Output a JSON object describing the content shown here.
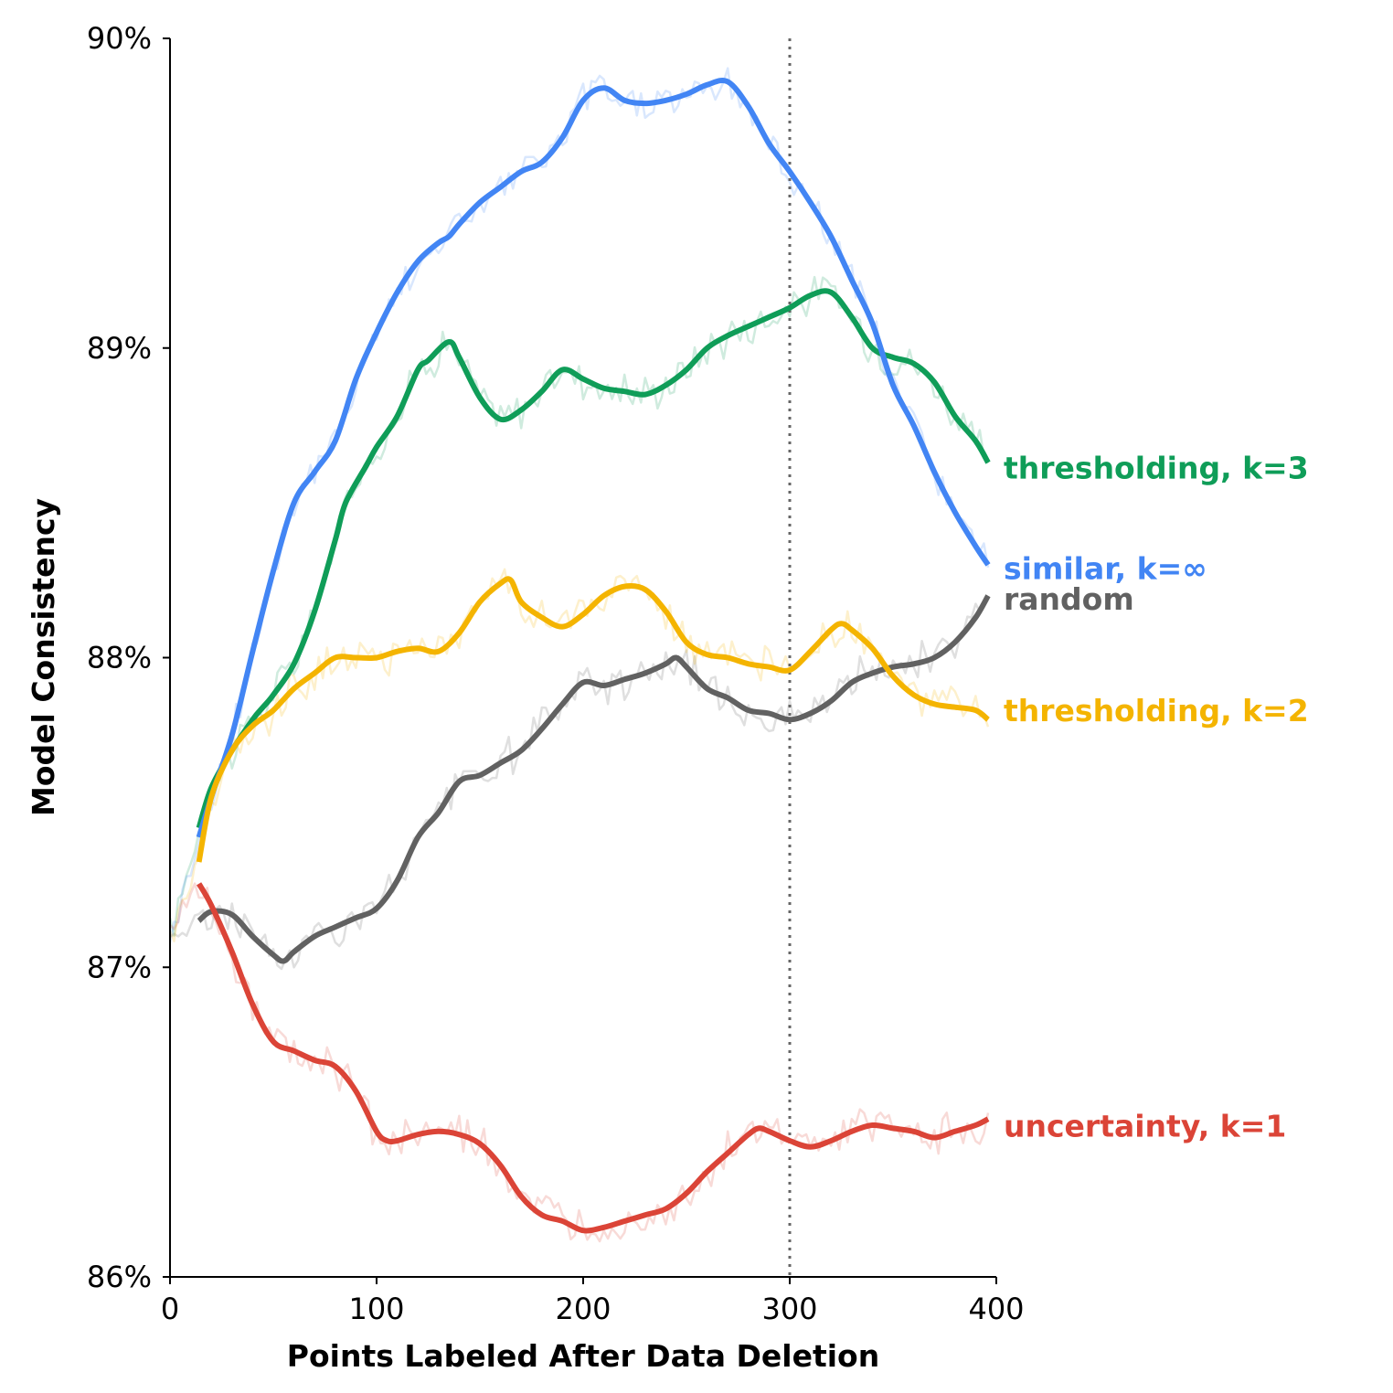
{
  "chart_data": {
    "type": "line",
    "title": "",
    "xlabel": "Points Labeled After Data Deletion",
    "ylabel": "Model Consistency",
    "xlim": [
      0,
      400
    ],
    "ylim": [
      86,
      90
    ],
    "x_ticks": [
      {
        "value": 0,
        "label": "0"
      },
      {
        "value": 100,
        "label": "100"
      },
      {
        "value": 200,
        "label": "200"
      },
      {
        "value": 300,
        "label": "300"
      },
      {
        "value": 400,
        "label": "400"
      }
    ],
    "y_ticks": [
      {
        "value": 86,
        "label": "86%"
      },
      {
        "value": 87,
        "label": "87%"
      },
      {
        "value": 88,
        "label": "88%"
      },
      {
        "value": 89,
        "label": "89%"
      },
      {
        "value": 90,
        "label": "90%"
      }
    ],
    "grid": false,
    "reference_line": {
      "x": 300,
      "style": "dotted",
      "color": "#666666"
    },
    "raw_noise_amplitude": 0.05,
    "series": [
      {
        "name": "thresholding, k=3",
        "color": "#0f9d58",
        "x": [
          14,
          20,
          30,
          40,
          45,
          50,
          60,
          70,
          80,
          85,
          95,
          100,
          110,
          120,
          125,
          135,
          140,
          150,
          160,
          170,
          180,
          190,
          200,
          210,
          220,
          230,
          240,
          250,
          260,
          270,
          280,
          290,
          300,
          310,
          320,
          330,
          340,
          350,
          360,
          370,
          380,
          390,
          396
        ],
        "y": [
          87.45,
          87.58,
          87.7,
          87.8,
          87.84,
          87.88,
          87.98,
          88.15,
          88.38,
          88.5,
          88.62,
          88.68,
          88.78,
          88.93,
          88.96,
          89.02,
          88.97,
          88.84,
          88.77,
          88.8,
          88.86,
          88.93,
          88.9,
          88.87,
          88.86,
          88.85,
          88.88,
          88.93,
          89.0,
          89.04,
          89.07,
          89.1,
          89.13,
          89.17,
          89.18,
          89.1,
          89.0,
          88.97,
          88.95,
          88.89,
          88.78,
          88.7,
          88.63
        ]
      },
      {
        "name": "similar, k=∞",
        "color": "#4285f4",
        "x": [
          14,
          20,
          30,
          40,
          50,
          60,
          70,
          80,
          90,
          100,
          110,
          120,
          130,
          135,
          140,
          150,
          160,
          170,
          180,
          190,
          200,
          210,
          220,
          230,
          240,
          250,
          260,
          270,
          280,
          290,
          300,
          310,
          320,
          330,
          340,
          350,
          360,
          370,
          380,
          390,
          396
        ],
        "y": [
          87.42,
          87.55,
          87.75,
          88.02,
          88.28,
          88.5,
          88.6,
          88.7,
          88.9,
          89.05,
          89.18,
          89.28,
          89.34,
          89.36,
          89.4,
          89.47,
          89.52,
          89.57,
          89.6,
          89.68,
          89.8,
          89.84,
          89.8,
          89.79,
          89.8,
          89.82,
          89.85,
          89.86,
          89.78,
          89.66,
          89.57,
          89.47,
          89.36,
          89.22,
          89.08,
          88.88,
          88.75,
          88.6,
          88.47,
          88.36,
          88.3
        ]
      },
      {
        "name": "random",
        "color": "#616161",
        "x": [
          14,
          20,
          30,
          40,
          50,
          55,
          60,
          70,
          80,
          90,
          100,
          110,
          120,
          130,
          140,
          150,
          160,
          170,
          180,
          190,
          200,
          210,
          220,
          230,
          240,
          245,
          250,
          260,
          270,
          280,
          290,
          300,
          310,
          320,
          330,
          340,
          350,
          360,
          370,
          380,
          390,
          396
        ],
        "y": [
          87.15,
          87.18,
          87.17,
          87.1,
          87.04,
          87.02,
          87.05,
          87.1,
          87.13,
          87.16,
          87.19,
          87.28,
          87.42,
          87.5,
          87.6,
          87.62,
          87.66,
          87.7,
          87.77,
          87.85,
          87.92,
          87.91,
          87.93,
          87.95,
          87.98,
          88.0,
          87.97,
          87.9,
          87.87,
          87.83,
          87.82,
          87.8,
          87.82,
          87.86,
          87.92,
          87.95,
          87.97,
          87.98,
          88.0,
          88.05,
          88.13,
          88.2
        ]
      },
      {
        "name": "thresholding, k=2",
        "color": "#f4b400",
        "x": [
          14,
          20,
          30,
          40,
          50,
          60,
          70,
          80,
          90,
          100,
          110,
          120,
          130,
          140,
          150,
          160,
          165,
          170,
          180,
          190,
          200,
          210,
          220,
          230,
          240,
          250,
          260,
          270,
          280,
          290,
          300,
          310,
          320,
          325,
          330,
          340,
          350,
          360,
          370,
          380,
          390,
          396
        ],
        "y": [
          87.34,
          87.55,
          87.7,
          87.78,
          87.83,
          87.9,
          87.95,
          88.0,
          88.0,
          88.0,
          88.02,
          88.03,
          88.02,
          88.08,
          88.18,
          88.24,
          88.25,
          88.18,
          88.13,
          88.1,
          88.14,
          88.2,
          88.23,
          88.22,
          88.15,
          88.05,
          88.01,
          88.0,
          87.98,
          87.97,
          87.96,
          88.02,
          88.09,
          88.11,
          88.09,
          88.03,
          87.94,
          87.88,
          87.85,
          87.84,
          87.83,
          87.8
        ]
      },
      {
        "name": "uncertainty, k=1",
        "color": "#db4437",
        "x": [
          14,
          20,
          30,
          40,
          50,
          60,
          70,
          80,
          90,
          100,
          105,
          110,
          120,
          130,
          140,
          150,
          160,
          170,
          180,
          190,
          200,
          210,
          220,
          230,
          240,
          250,
          260,
          270,
          280,
          285,
          290,
          300,
          310,
          320,
          330,
          340,
          350,
          360,
          370,
          380,
          390,
          396
        ],
        "y": [
          87.27,
          87.2,
          87.05,
          86.88,
          86.76,
          86.73,
          86.7,
          86.68,
          86.6,
          86.47,
          86.44,
          86.44,
          86.46,
          86.47,
          86.46,
          86.43,
          86.36,
          86.26,
          86.2,
          86.18,
          86.15,
          86.16,
          86.18,
          86.2,
          86.22,
          86.27,
          86.34,
          86.4,
          86.46,
          86.48,
          86.47,
          86.44,
          86.42,
          86.44,
          86.47,
          86.49,
          86.48,
          86.47,
          86.45,
          86.47,
          86.49,
          86.51
        ]
      }
    ]
  }
}
